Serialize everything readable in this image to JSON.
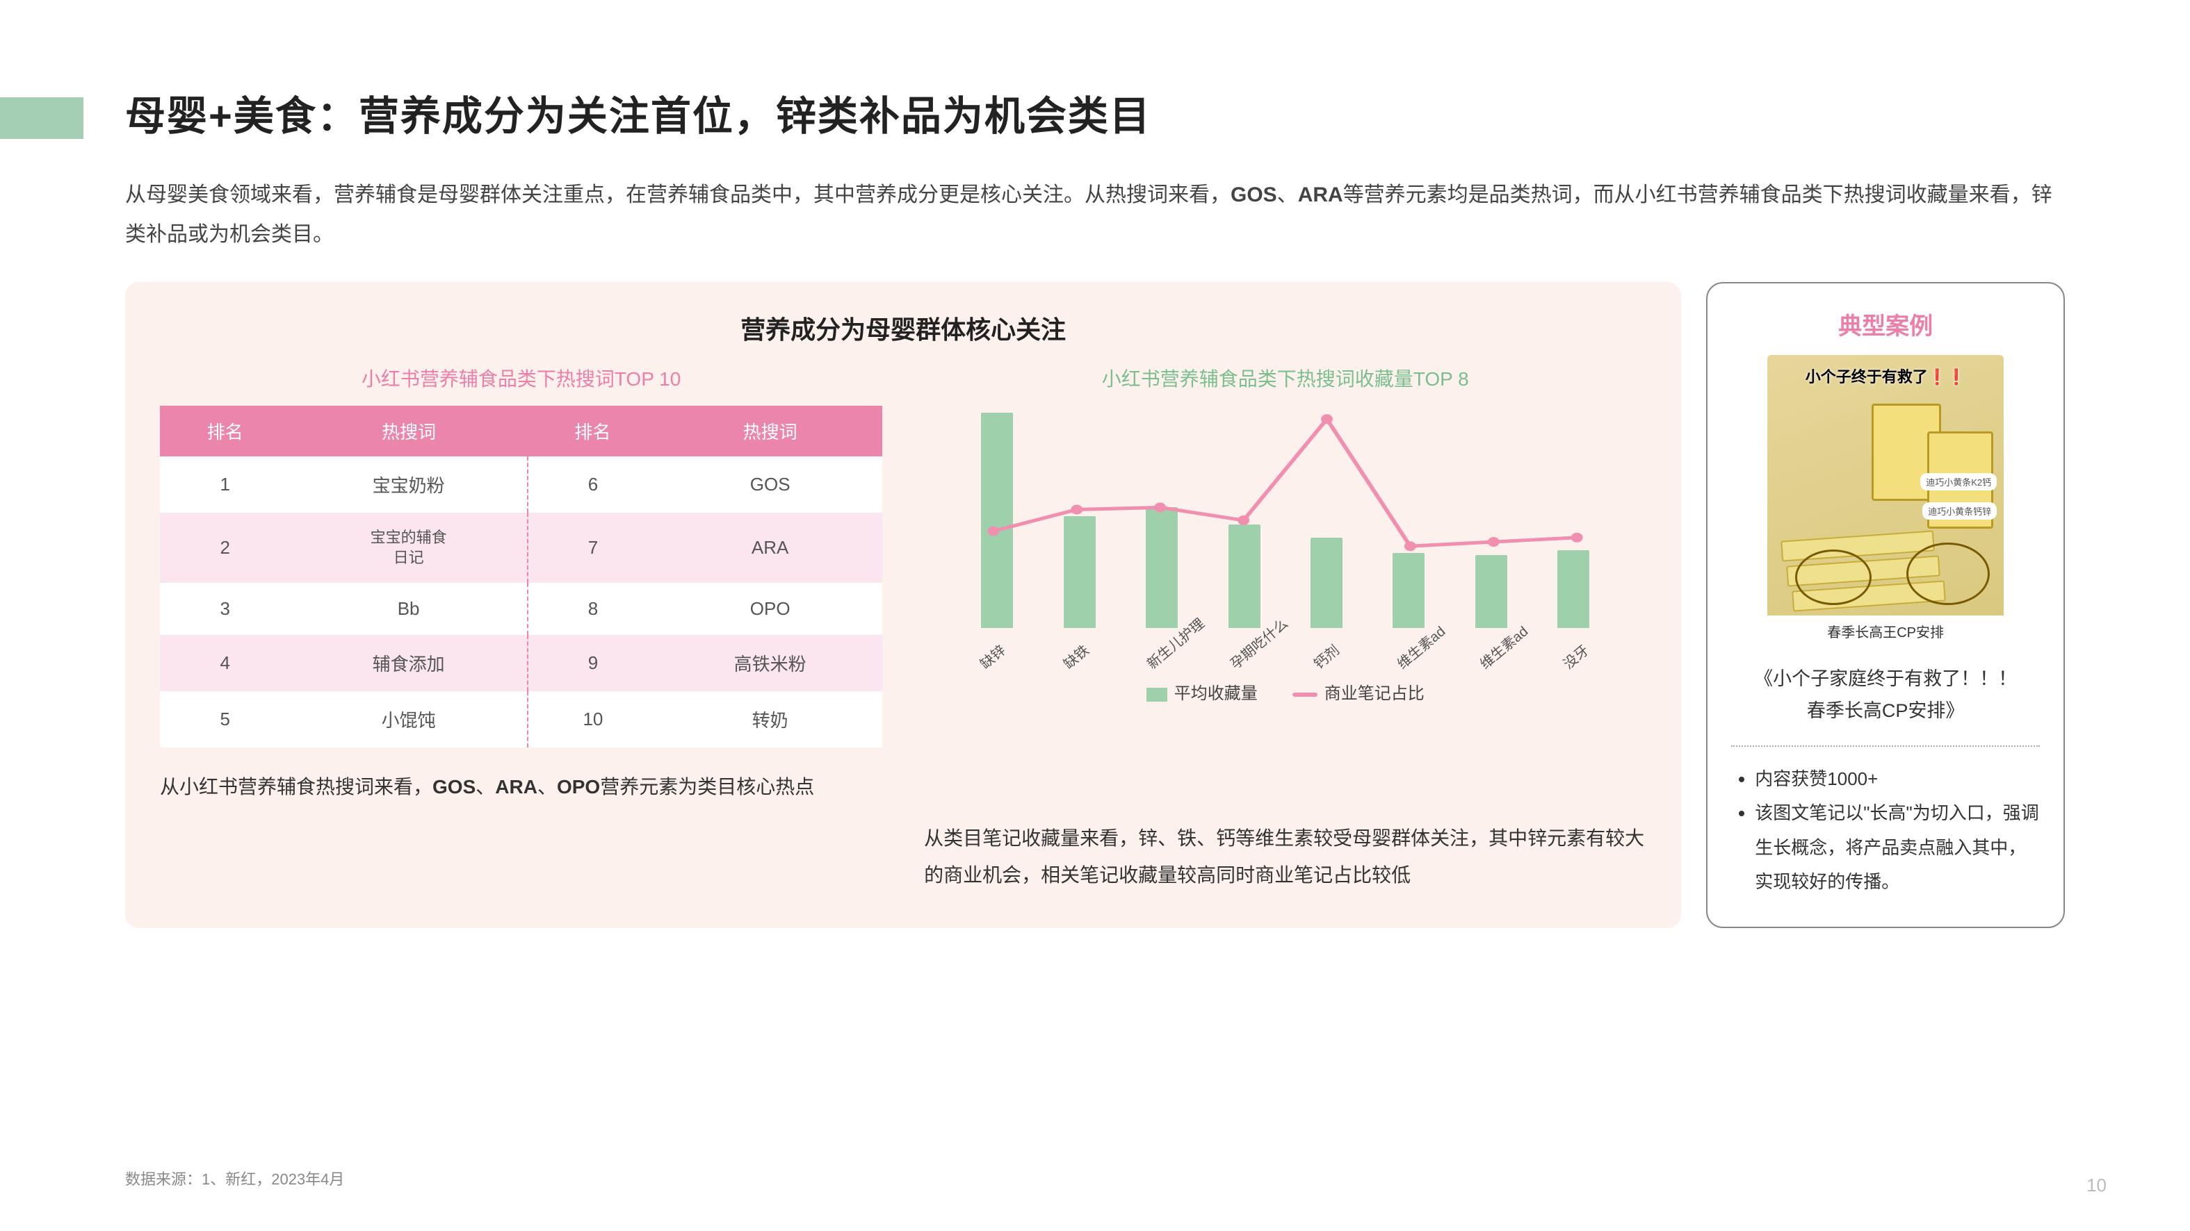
{
  "page": {
    "accent_color": "#a5cfb4",
    "title": "母婴+美食：营养成分为关注首位，锌类补品为机会类目",
    "intro_html": "从母婴美食领域来看，营养辅食是母婴群体关注重点，在营养辅食品类中，其中营养成分更是核心关注。从热搜词来看，<b>GOS</b>、<b>ARA</b>等营养元素均是品类热词，而从小红书营养辅食品类下热搜词收藏量来看，锌类补品或为机会类目。",
    "footer_source": "数据来源：1、新红，2023年4月",
    "page_number": "10"
  },
  "main_panel": {
    "background_color": "#fcf1ed",
    "title": "营养成分为母婴群体核心关注",
    "table_block": {
      "subtitle": "小红书营养辅食品类下热搜词TOP 10",
      "subtitle_color": "#ec7fa9",
      "header_bg": "#ec85ab",
      "alt_row_bg": "#fbe6ef",
      "columns": [
        "排名",
        "热搜词",
        "排名",
        "热搜词"
      ],
      "rows": [
        [
          "1",
          "宝宝奶粉",
          "6",
          "GOS"
        ],
        [
          "2",
          "宝宝的辅食日记",
          "7",
          "ARA"
        ],
        [
          "3",
          "Bb",
          "8",
          "OPO"
        ],
        [
          "4",
          "辅食添加",
          "9",
          "高铁米粉"
        ],
        [
          "5",
          "小馄饨",
          "10",
          "转奶"
        ]
      ],
      "desc_html": "从小红书营养辅食热搜词来看，<b>GOS</b>、<b>ARA</b>、<b>OPO</b>营养元素为类目核心热点"
    },
    "chart_block": {
      "subtitle": "小红书营养辅食品类下热搜词收藏量TOP 8",
      "subtitle_color": "#7bbf8e",
      "categories": [
        "缺锌",
        "缺铁",
        "新生儿护理",
        "孕期吃什么",
        "钙剂",
        "维生素ad",
        "维生素ad",
        "没牙"
      ],
      "bar_values": [
        100,
        52,
        56,
        48,
        42,
        35,
        34,
        36
      ],
      "bar_color": "#9ed0ab",
      "line_values": [
        45,
        55,
        56,
        50,
        97,
        38,
        40,
        42
      ],
      "line_color": "#f18fb0",
      "y_max": 100,
      "legend_bar": "平均收藏量",
      "legend_line": "商业笔记占比",
      "desc_html": "从类目笔记收藏量来看，锌、铁、钙等维生素较受母婴群体关注，其中锌元素有较大的商业机会，相关笔记收藏量较高同时商业笔记占比较低"
    }
  },
  "case_panel": {
    "title": "典型案例",
    "title_color": "#ec7fa9",
    "image_headline": "小个子终于有救了",
    "image_tag1": "迪巧小黄条K2钙",
    "image_tag2": "迪巧小黄条钙锌",
    "image_bottom": "春季长高王CP安排",
    "caption_line1": "《小个子家庭终于有救了！！！",
    "caption_line2": "春季长高CP安排》",
    "points": [
      "内容获赞1000+",
      "该图文笔记以\"长高\"为切入口，强调生长概念，将产品卖点融入其中，实现较好的传播。"
    ]
  }
}
